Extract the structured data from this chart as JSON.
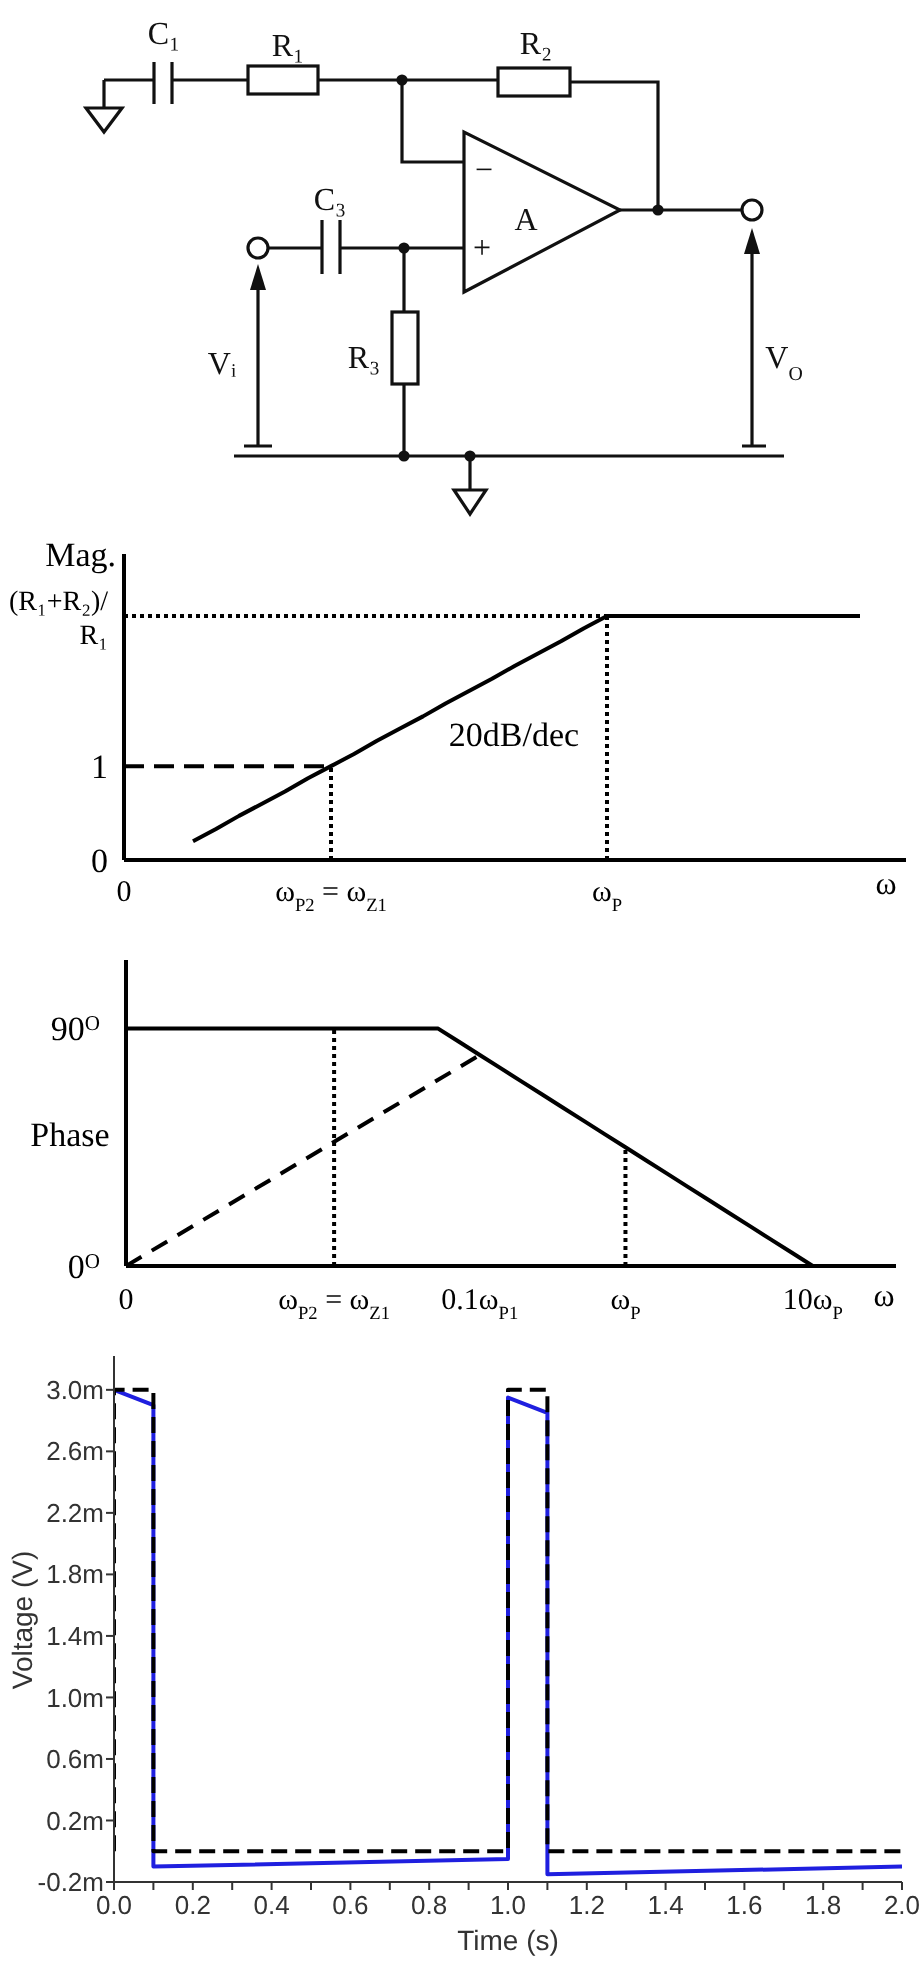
{
  "chart_data": [
    {
      "type": "other",
      "annotations": [
        "C₁",
        "R₁",
        "R₂",
        "−",
        "C₃",
        "A",
        "+",
        "Vᵢ",
        "R₃",
        "V$_{O}$"
      ]
    },
    {
      "type": "line",
      "ylabel": "Mag.",
      "xlabel": "ω",
      "annotations": [
        "20dB/dec"
      ],
      "categories": [
        "0",
        null,
        null,
        null,
        null,
        null,
        null,
        null,
        null,
        "ω$_{P2}$ = ω$_{Z1}$",
        null,
        null,
        null,
        null,
        null,
        null,
        null,
        null,
        null,
        null,
        null,
        "ω$_{P}$",
        null,
        null,
        null,
        null,
        null,
        null,
        null,
        null,
        null,
        null,
        null,
        null,
        null
      ],
      "ylim": [
        0,
        3.26
      ],
      "yticks": [
        0,
        1,
        {
          "value": 2.6,
          "label": "(R₁+R₂)/R₁"
        }
      ],
      "series": [
        {
          "color": "#000000",
          "line_style": "dotted",
          "x": [
            "ω$_{P2}$ = ω$_{Z1}$",
            "ω$_{P2}$ = ω$_{Z1}$"
          ],
          "values": [
            0,
            1
          ]
        },
        {
          "color": "#000000",
          "line_style": "dotted",
          "values": [
            2.6,
            2.6,
            2.6,
            2.6,
            2.6,
            2.6,
            2.6,
            2.6,
            2.6,
            2.6,
            2.6,
            2.6,
            2.6,
            2.6,
            2.6,
            2.6,
            2.6,
            2.6,
            2.6,
            2.6,
            2.6,
            2.6,
            null,
            null,
            null,
            null,
            null,
            null,
            null,
            null,
            null,
            null,
            null,
            null,
            null
          ]
        },
        {
          "color": "#000000",
          "line_style": "dotted",
          "x": [
            "ω$_{P}$",
            "ω$_{P}$"
          ],
          "values": [
            0,
            2.6
          ]
        },
        {
          "color": "#000000",
          "line_style": "solid",
          "values": [
            null,
            null,
            null,
            0.2,
            0.33,
            0.47,
            0.6,
            0.73,
            0.87,
            1,
            1.13,
            1.27,
            1.4,
            1.53,
            1.67,
            1.8,
            1.93,
            2.07,
            2.2,
            2.33,
            2.47,
            2.6,
            2.6,
            2.6,
            2.6,
            2.6,
            2.6,
            2.6,
            2.6,
            2.6,
            2.6,
            2.6,
            2.6,
            null,
            null
          ]
        },
        {
          "color": "#000000",
          "line_style": "dashed",
          "values": [
            1,
            1,
            1,
            1,
            1,
            1,
            1,
            1,
            1,
            1,
            null,
            null,
            null,
            null,
            null,
            null,
            null,
            null,
            null,
            null,
            null,
            null,
            null,
            null,
            null,
            null,
            null,
            null,
            null,
            null,
            null,
            null,
            null,
            null,
            null
          ]
        }
      ]
    },
    {
      "type": "line",
      "ylabel": "Phase",
      "xlabel": "ω",
      "categories": [
        "0",
        null,
        null,
        null,
        null,
        null,
        null,
        null,
        null,
        null,
        "ω$_{P2}$ = ω$_{Z1}$",
        null,
        null,
        null,
        null,
        null,
        null,
        "0.1ω$_{P1}$",
        null,
        null,
        null,
        null,
        null,
        null,
        "ω$_{P}$",
        null,
        null,
        null,
        null,
        null,
        null,
        null,
        null,
        "10ω$_{P}$",
        null,
        null,
        null,
        null
      ],
      "ylim": [
        0,
        116
      ],
      "yticks": [
        {
          "value": 0,
          "label": "0$^{O}$"
        },
        {
          "value": 90,
          "label": "90$^{O}$"
        }
      ],
      "series": [
        {
          "color": "#000000",
          "line_style": "solid",
          "values": [
            90,
            90,
            90,
            90,
            90,
            90,
            90,
            90,
            90,
            90,
            90,
            90,
            90,
            90,
            90,
            90,
            85,
            80,
            75,
            70,
            65,
            60,
            55,
            50,
            45,
            40,
            35,
            30,
            25,
            20,
            15,
            10,
            5,
            0,
            0,
            0,
            0,
            0
          ]
        },
        {
          "color": "#000000",
          "line_style": "dashed",
          "x": [
            "0",
            "0.1ω$_{P1}$"
          ],
          "values": [
            0,
            80
          ]
        },
        {
          "color": "#000000",
          "line_style": "dotted",
          "x": [
            "ω$_{P2}$ = ω$_{Z1}$",
            "ω$_{P2}$ = ω$_{Z1}$",
            "ω$_{P2}$ = ω$_{Z1}$",
            "ω$_{P2}$ = ω$_{Z1}$",
            "ω$_{P}$",
            "ω$_{P}$"
          ],
          "values": [
            0,
            47,
            90,
            null,
            0,
            45
          ]
        }
      ]
    },
    {
      "type": "line",
      "xlabel": "Time (s)",
      "ylabel": "Voltage (V)",
      "xlim": [
        0,
        2
      ],
      "xticks": [
        {
          "value": 0,
          "label": "0.0"
        },
        {
          "value": 0.1,
          "label": null
        },
        0.2,
        {
          "value": 0.3,
          "label": null
        },
        0.4,
        {
          "value": 0.5,
          "label": null
        },
        0.6,
        {
          "value": 0.7,
          "label": null
        },
        0.8,
        {
          "value": 0.9,
          "label": null
        },
        {
          "value": 1,
          "label": "1.0"
        },
        {
          "value": 1.1,
          "label": null
        },
        1.2,
        {
          "value": 1.3,
          "label": null
        },
        1.4,
        {
          "value": 1.5,
          "label": null
        },
        1.6,
        {
          "value": 1.7,
          "label": null
        },
        1.8,
        {
          "value": 1.9,
          "label": null
        },
        {
          "value": 2,
          "label": "2.0"
        }
      ],
      "ylim": [
        -0.2,
        3.22
      ],
      "yticks": [
        {
          "value": -0.2,
          "label": "-0.2m"
        },
        {
          "value": 0.2,
          "label": "0.2m"
        },
        {
          "value": 0.6,
          "label": "0.6m"
        },
        {
          "value": 1,
          "label": "1.0m"
        },
        {
          "value": 1.4,
          "label": "1.4m"
        },
        {
          "value": 1.8,
          "label": "1.8m"
        },
        {
          "value": 2.2,
          "label": "2.2m"
        },
        {
          "value": 2.6,
          "label": "2.6m"
        },
        {
          "value": 3,
          "label": "3.0m"
        }
      ],
      "series": [
        {
          "color": "#1f1fdf",
          "line_style": "solid",
          "x": [
            0,
            0.1,
            0.1,
            1,
            1,
            1.1,
            1.1,
            2
          ],
          "values": [
            3,
            2.9,
            -0.1,
            -0.05,
            2.95,
            2.85,
            -0.15,
            -0.1
          ]
        },
        {
          "color": "#000000",
          "line_style": "dashed",
          "x": [
            0,
            0,
            0.1,
            0.1,
            1,
            1,
            1.1,
            1.1,
            2
          ],
          "values": [
            0,
            3,
            3,
            0,
            0,
            3,
            3,
            0,
            0
          ]
        }
      ]
    }
  ]
}
